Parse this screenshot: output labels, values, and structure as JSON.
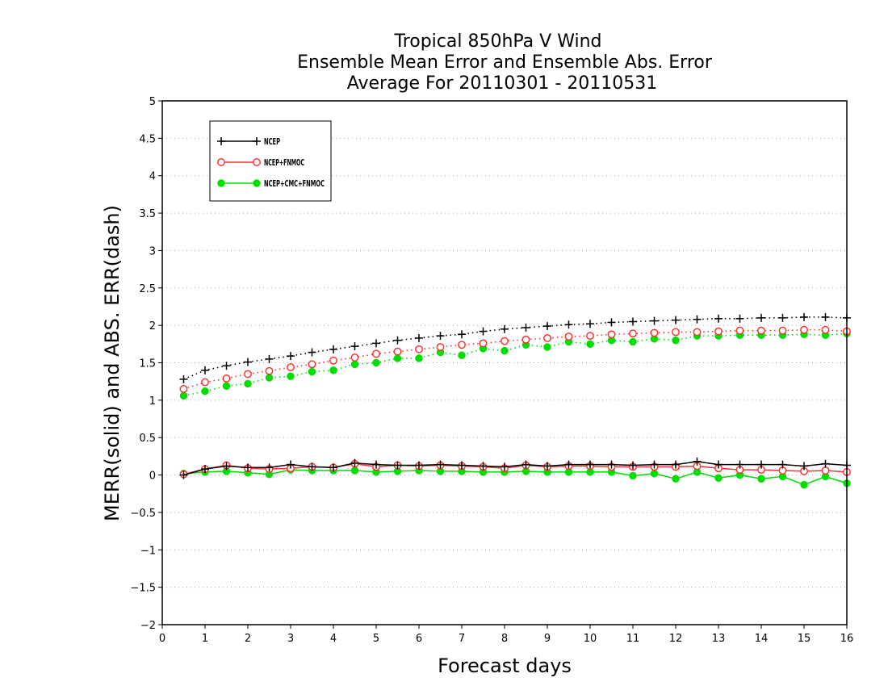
{
  "chart_data": {
    "type": "line",
    "title": [
      "Tropical 850hPa V Wind",
      "Ensemble Mean Error and Ensemble Abs. Error",
      "Average For 20110301 - 20110531"
    ],
    "xlabel": "Forecast days",
    "ylabel": "MERR(solid) and ABS. ERR(dash)",
    "xlim": [
      0,
      16
    ],
    "ylim": [
      -2,
      5
    ],
    "x_ticks": [
      "0",
      "1",
      "2",
      "3",
      "4",
      "5",
      "6",
      "7",
      "8",
      "9",
      "10",
      "11",
      "12",
      "13",
      "14",
      "15",
      "16"
    ],
    "y_ticks": [
      "−2",
      "−1.5",
      "−1",
      "−0.5",
      "0",
      "0.5",
      "1",
      "1.5",
      "2",
      "2.5",
      "3",
      "3.5",
      "4",
      "4.5",
      "5"
    ],
    "y_tick_values": [
      -2,
      -1.5,
      -1,
      -0.5,
      0,
      0.5,
      1,
      1.5,
      2,
      2.5,
      3,
      3.5,
      4,
      4.5,
      5
    ],
    "grid": "horizontal dotted",
    "legend_position": "top-left",
    "x": [
      0.5,
      1,
      1.5,
      2,
      2.5,
      3,
      3.5,
      4,
      4.5,
      5,
      5.5,
      6,
      6.5,
      7,
      7.5,
      8,
      8.5,
      9,
      9.5,
      10,
      10.5,
      11,
      11.5,
      12,
      12.5,
      13,
      13.5,
      14,
      14.5,
      15,
      15.5,
      16
    ],
    "series": [
      {
        "name": "NCEP",
        "color": "#000000",
        "marker": "plus",
        "merr": [
          0.0,
          0.08,
          0.12,
          0.1,
          0.1,
          0.14,
          0.11,
          0.1,
          0.16,
          0.14,
          0.13,
          0.13,
          0.14,
          0.13,
          0.12,
          0.11,
          0.14,
          0.12,
          0.14,
          0.14,
          0.14,
          0.13,
          0.14,
          0.14,
          0.18,
          0.14,
          0.14,
          0.14,
          0.14,
          0.12,
          0.15,
          0.13
        ],
        "abs_err": [
          1.28,
          1.4,
          1.46,
          1.51,
          1.55,
          1.59,
          1.64,
          1.68,
          1.72,
          1.76,
          1.8,
          1.83,
          1.86,
          1.88,
          1.92,
          1.95,
          1.97,
          1.99,
          2.01,
          2.02,
          2.04,
          2.05,
          2.06,
          2.07,
          2.08,
          2.09,
          2.09,
          2.1,
          2.1,
          2.11,
          2.11,
          2.1
        ]
      },
      {
        "name": "NCEP+FNMOC",
        "color": "#ff3333",
        "marker": "open-circle",
        "merr": [
          0.01,
          0.08,
          0.13,
          0.09,
          0.08,
          0.09,
          0.11,
          0.1,
          0.15,
          0.11,
          0.13,
          0.12,
          0.13,
          0.12,
          0.11,
          0.09,
          0.13,
          0.11,
          0.12,
          0.12,
          0.11,
          0.11,
          0.11,
          0.11,
          0.12,
          0.09,
          0.07,
          0.07,
          0.06,
          0.05,
          0.06,
          0.04
        ],
        "abs_err": [
          1.15,
          1.24,
          1.29,
          1.35,
          1.39,
          1.44,
          1.48,
          1.53,
          1.57,
          1.62,
          1.65,
          1.68,
          1.71,
          1.74,
          1.76,
          1.79,
          1.81,
          1.83,
          1.85,
          1.86,
          1.88,
          1.89,
          1.9,
          1.91,
          1.91,
          1.92,
          1.93,
          1.93,
          1.93,
          1.94,
          1.94,
          1.92
        ]
      },
      {
        "name": "NCEP+CMC+FNMOC",
        "color": "#00dd00",
        "marker": "filled-circle",
        "merr": [
          0.02,
          0.04,
          0.05,
          0.03,
          0.01,
          0.07,
          0.06,
          0.06,
          0.06,
          0.04,
          0.05,
          0.06,
          0.05,
          0.05,
          0.04,
          0.04,
          0.05,
          0.04,
          0.04,
          0.04,
          0.04,
          -0.01,
          0.02,
          -0.05,
          0.04,
          -0.04,
          0.0,
          -0.05,
          -0.02,
          -0.13,
          -0.02,
          -0.11
        ],
        "abs_err": [
          1.06,
          1.12,
          1.19,
          1.22,
          1.3,
          1.32,
          1.38,
          1.4,
          1.48,
          1.5,
          1.56,
          1.56,
          1.64,
          1.6,
          1.69,
          1.66,
          1.74,
          1.71,
          1.78,
          1.75,
          1.8,
          1.78,
          1.82,
          1.8,
          1.86,
          1.86,
          1.87,
          1.87,
          1.87,
          1.88,
          1.87,
          1.89
        ]
      }
    ]
  }
}
